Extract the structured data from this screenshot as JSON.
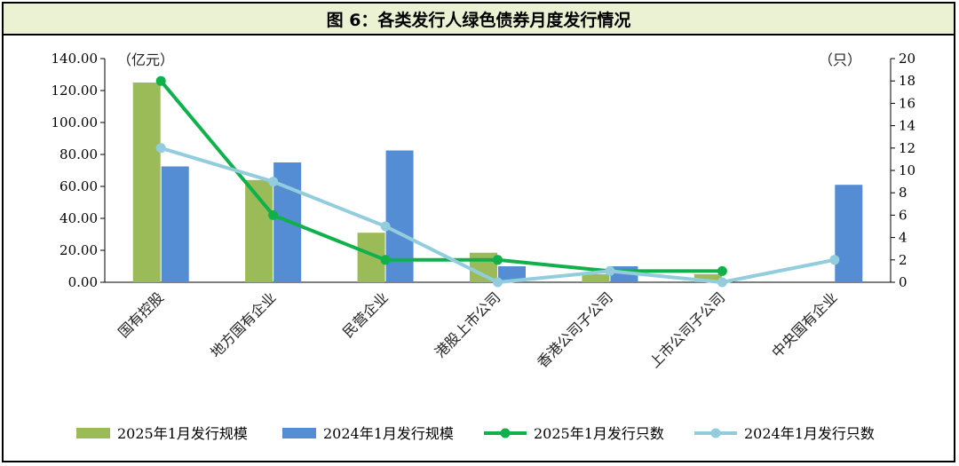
{
  "title": "图 6：各类发行人绿色债券月度发行情况",
  "chart_data": {
    "type": "bar",
    "categories": [
      "国有控股",
      "地方国有企业",
      "民营企业",
      "港股上市公司",
      "香港公司子公司",
      "上市公司子公司",
      "中央国有企业"
    ],
    "left_unit": "（亿元）",
    "right_unit": "（只）",
    "left_axis": {
      "ylim": [
        0,
        140
      ],
      "ticks": [
        "0.00",
        "20.00",
        "40.00",
        "60.00",
        "80.00",
        "100.00",
        "120.00",
        "140.00"
      ]
    },
    "right_axis": {
      "ylim": [
        0,
        20
      ],
      "ticks": [
        "0",
        "2",
        "4",
        "6",
        "8",
        "10",
        "12",
        "14",
        "16",
        "18",
        "20"
      ]
    },
    "bar_series": [
      {
        "name": "2025年1月发行规模",
        "color": "#9bbb59",
        "values": [
          125,
          64,
          31,
          18.5,
          5,
          5,
          null
        ]
      },
      {
        "name": "2024年1月发行规模",
        "color": "#548dd4",
        "values": [
          72.5,
          75,
          82.5,
          10,
          10,
          null,
          61
        ]
      }
    ],
    "line_series": [
      {
        "name": "2025年1月发行只数",
        "color": "#10b04a",
        "values": [
          18,
          6,
          2,
          2,
          1,
          1,
          null
        ]
      },
      {
        "name": "2024年1月发行只数",
        "color": "#93cddd",
        "values": [
          12,
          9,
          5,
          0,
          1,
          0,
          2
        ]
      }
    ]
  }
}
